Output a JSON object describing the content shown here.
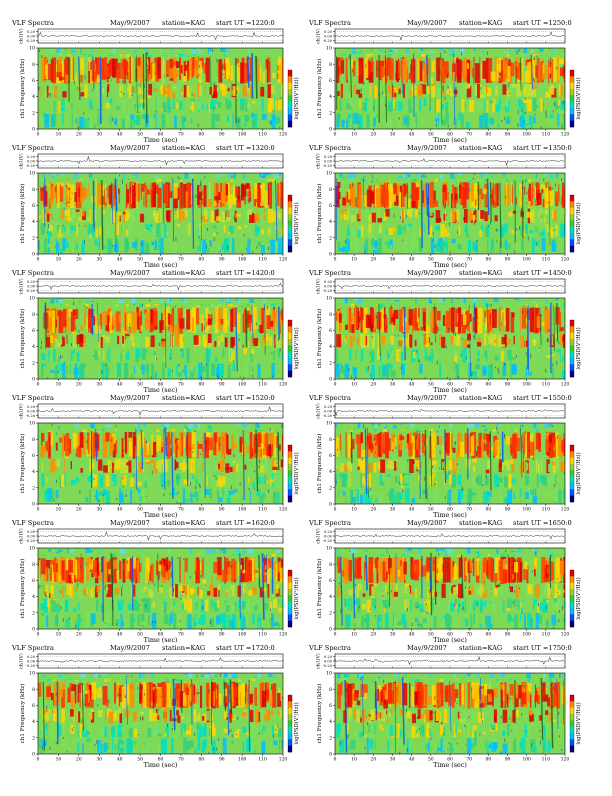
{
  "page": {
    "colorbar_colors": [
      "#e00000",
      "#ff8c00",
      "#ffd700",
      "#9acd32",
      "#32cd32",
      "#00e0c0",
      "#00bfff",
      "#0050ff",
      "#000080"
    ]
  },
  "chart_data": [
    {
      "type": "heatmap",
      "title": "VLF Spectra",
      "date": "May/9/2007",
      "station": "station=KAG",
      "start": "start UT =1220:0",
      "ch_label": "ch1(V)",
      "y_label": "ch1 Frequency (kHz)",
      "x_label": "Time (sec)",
      "colorbar_label": "log(PSD(V²/Hz))",
      "x_ticks": [
        "0",
        "10",
        "20",
        "30",
        "40",
        "50",
        "60",
        "70",
        "80",
        "90",
        "100",
        "110",
        "120"
      ],
      "y_ticks": [
        "0",
        "2",
        "4",
        "6",
        "8",
        "10"
      ],
      "ts_ticks": [
        "0.20",
        "0.00",
        "-0.20"
      ],
      "xlim": [
        0,
        120
      ],
      "ylim": [
        0,
        10
      ]
    },
    {
      "type": "heatmap",
      "title": "VLF Spectra",
      "date": "May/9/2007",
      "station": "station=KAG",
      "start": "start UT =1250:0",
      "ch_label": "ch1(V)",
      "y_label": "ch1 Frequency (kHz)",
      "x_label": "Time (sec)",
      "colorbar_label": "log(PSD(V²/Hz))",
      "x_ticks": [
        "0",
        "10",
        "20",
        "30",
        "40",
        "50",
        "60",
        "70",
        "80",
        "90",
        "100",
        "110",
        "120"
      ],
      "y_ticks": [
        "0",
        "2",
        "4",
        "6",
        "8",
        "10"
      ],
      "ts_ticks": [
        "0.20",
        "0.00",
        "-0.20"
      ],
      "xlim": [
        0,
        120
      ],
      "ylim": [
        0,
        10
      ]
    },
    {
      "type": "heatmap",
      "title": "VLF Spectra",
      "date": "May/9/2007",
      "station": "station=KAG",
      "start": "start UT =1320:0",
      "ch_label": "ch1(V)",
      "y_label": "ch1 Frequency (kHz)",
      "x_label": "Time (sec)",
      "colorbar_label": "log(PSD(V²/Hz))",
      "x_ticks": [
        "0",
        "10",
        "20",
        "30",
        "40",
        "50",
        "60",
        "70",
        "80",
        "90",
        "100",
        "110",
        "120"
      ],
      "y_ticks": [
        "0",
        "2",
        "4",
        "6",
        "8",
        "10"
      ],
      "ts_ticks": [
        "0.20",
        "0.00",
        "-0.20"
      ],
      "xlim": [
        0,
        120
      ],
      "ylim": [
        0,
        10
      ]
    },
    {
      "type": "heatmap",
      "title": "VLF Spectra",
      "date": "May/9/2007",
      "station": "station=KAG",
      "start": "start UT =1350:0",
      "ch_label": "ch1(V)",
      "y_label": "ch1 Frequency (kHz)",
      "x_label": "Time (sec)",
      "colorbar_label": "log(PSD(V²/Hz))",
      "x_ticks": [
        "0",
        "10",
        "20",
        "30",
        "40",
        "50",
        "60",
        "70",
        "80",
        "90",
        "100",
        "110",
        "120"
      ],
      "y_ticks": [
        "0",
        "2",
        "4",
        "6",
        "8",
        "10"
      ],
      "ts_ticks": [
        "0.20",
        "0.00",
        "-0.20"
      ],
      "xlim": [
        0,
        120
      ],
      "ylim": [
        0,
        10
      ]
    },
    {
      "type": "heatmap",
      "title": "VLF Spectra",
      "date": "May/9/2007",
      "station": "station=KAG",
      "start": "start UT =1420:0",
      "ch_label": "ch1(V)",
      "y_label": "ch1 Frequency (kHz)",
      "x_label": "Time (sec)",
      "colorbar_label": "log(PSD(V²/Hz))",
      "x_ticks": [
        "0",
        "10",
        "20",
        "30",
        "40",
        "50",
        "60",
        "70",
        "80",
        "90",
        "100",
        "110",
        "120"
      ],
      "y_ticks": [
        "0",
        "2",
        "4",
        "6",
        "8",
        "10"
      ],
      "ts_ticks": [
        "0.20",
        "0.00",
        "-0.20"
      ],
      "xlim": [
        0,
        120
      ],
      "ylim": [
        0,
        10
      ]
    },
    {
      "type": "heatmap",
      "title": "VLF Spectra",
      "date": "May/9/2007",
      "station": "station=KAG",
      "start": "start UT =1450:0",
      "ch_label": "ch1(V)",
      "y_label": "ch1 Frequency (kHz)",
      "x_label": "Time (sec)",
      "colorbar_label": "log(PSD(V²/Hz))",
      "x_ticks": [
        "0",
        "10",
        "20",
        "30",
        "40",
        "50",
        "60",
        "70",
        "80",
        "90",
        "100",
        "110",
        "120"
      ],
      "y_ticks": [
        "0",
        "2",
        "4",
        "6",
        "8",
        "10"
      ],
      "ts_ticks": [
        "0.20",
        "0.00",
        "-0.20"
      ],
      "xlim": [
        0,
        120
      ],
      "ylim": [
        0,
        10
      ]
    },
    {
      "type": "heatmap",
      "title": "VLF Spectra",
      "date": "May/9/2007",
      "station": "station=KAG",
      "start": "start UT =1520:0",
      "ch_label": "ch1(V)",
      "y_label": "ch1 Frequency (kHz)",
      "x_label": "Time (sec)",
      "colorbar_label": "log(PSD(V²/Hz))",
      "x_ticks": [
        "0",
        "10",
        "20",
        "30",
        "40",
        "50",
        "60",
        "70",
        "80",
        "90",
        "100",
        "110",
        "120"
      ],
      "y_ticks": [
        "0",
        "2",
        "4",
        "6",
        "8",
        "10"
      ],
      "ts_ticks": [
        "0.20",
        "0.00",
        "-0.20"
      ],
      "xlim": [
        0,
        120
      ],
      "ylim": [
        0,
        10
      ]
    },
    {
      "type": "heatmap",
      "title": "VLF Spectra",
      "date": "May/9/2007",
      "station": "station=KAG",
      "start": "start UT =1550:0",
      "ch_label": "ch1(V)",
      "y_label": "ch1 Frequency (kHz)",
      "x_label": "Time (sec)",
      "colorbar_label": "log(PSD(V²/Hz))",
      "x_ticks": [
        "0",
        "10",
        "20",
        "30",
        "40",
        "50",
        "60",
        "70",
        "80",
        "90",
        "100",
        "110",
        "120"
      ],
      "y_ticks": [
        "0",
        "2",
        "4",
        "6",
        "8",
        "10"
      ],
      "ts_ticks": [
        "0.20",
        "0.00",
        "-0.20"
      ],
      "xlim": [
        0,
        120
      ],
      "ylim": [
        0,
        10
      ]
    },
    {
      "type": "heatmap",
      "title": "VLF Spectra",
      "date": "May/9/2007",
      "station": "station=KAG",
      "start": "start UT =1620:0",
      "ch_label": "ch1(V)",
      "y_label": "ch1 Frequency (kHz)",
      "x_label": "Time (sec)",
      "colorbar_label": "log(PSD(V²/Hz))",
      "x_ticks": [
        "0",
        "10",
        "20",
        "30",
        "40",
        "50",
        "60",
        "70",
        "80",
        "90",
        "100",
        "110",
        "120"
      ],
      "y_ticks": [
        "0",
        "2",
        "4",
        "6",
        "8",
        "10"
      ],
      "ts_ticks": [
        "0.20",
        "0.00",
        "-0.20"
      ],
      "xlim": [
        0,
        120
      ],
      "ylim": [
        0,
        10
      ]
    },
    {
      "type": "heatmap",
      "title": "VLF Spectra",
      "date": "May/9/2007",
      "station": "station=KAG",
      "start": "start UT =1650:0",
      "ch_label": "ch1(V)",
      "y_label": "ch1 Frequency (kHz)",
      "x_label": "Time (sec)",
      "colorbar_label": "log(PSD(V²/Hz))",
      "x_ticks": [
        "0",
        "10",
        "20",
        "30",
        "40",
        "50",
        "60",
        "70",
        "80",
        "90",
        "100",
        "110",
        "120"
      ],
      "y_ticks": [
        "0",
        "2",
        "4",
        "6",
        "8",
        "10"
      ],
      "ts_ticks": [
        "0.20",
        "0.00",
        "-0.20"
      ],
      "xlim": [
        0,
        120
      ],
      "ylim": [
        0,
        10
      ]
    },
    {
      "type": "heatmap",
      "title": "VLF Spectra",
      "date": "May/9/2007",
      "station": "station=KAG",
      "start": "start UT =1720:0",
      "ch_label": "ch1(V)",
      "y_label": "ch1 Frequency (kHz)",
      "x_label": "Time (sec)",
      "colorbar_label": "log(PSD(V²/Hz))",
      "x_ticks": [
        "0",
        "10",
        "20",
        "30",
        "40",
        "50",
        "60",
        "70",
        "80",
        "90",
        "100",
        "110",
        "120"
      ],
      "y_ticks": [
        "0",
        "2",
        "4",
        "6",
        "8",
        "10"
      ],
      "ts_ticks": [
        "0.20",
        "0.00",
        "-0.20"
      ],
      "xlim": [
        0,
        120
      ],
      "ylim": [
        0,
        10
      ]
    },
    {
      "type": "heatmap",
      "title": "VLF Spectra",
      "date": "May/9/2007",
      "station": "station=KAG",
      "start": "start UT =1750:0",
      "ch_label": "ch1(V)",
      "y_label": "ch1 Frequency (kHz)",
      "x_label": "Time (sec)",
      "colorbar_label": "log(PSD(V²/Hz))",
      "x_ticks": [
        "0",
        "10",
        "20",
        "30",
        "40",
        "50",
        "60",
        "70",
        "80",
        "90",
        "100",
        "110",
        "120"
      ],
      "y_ticks": [
        "0",
        "2",
        "4",
        "6",
        "8",
        "10"
      ],
      "ts_ticks": [
        "0.20",
        "0.00",
        "-0.20"
      ],
      "xlim": [
        0,
        120
      ],
      "ylim": [
        0,
        10
      ]
    }
  ]
}
